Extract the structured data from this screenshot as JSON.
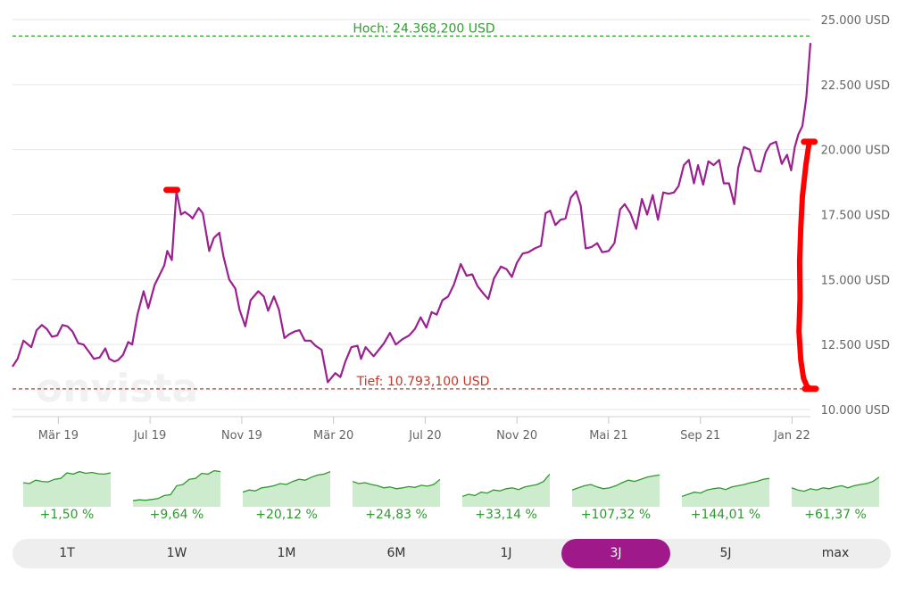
{
  "chart_data": {
    "type": "line",
    "title": "",
    "xlabel": "",
    "ylabel": "",
    "ylim": [
      10000,
      25000
    ],
    "grid": true,
    "watermark": "onvista",
    "line_color": "#9b2090",
    "y_ticks": [
      {
        "value": 10000,
        "label": "10.000 USD"
      },
      {
        "value": 12500,
        "label": "12.500 USD"
      },
      {
        "value": 15000,
        "label": "15.000 USD"
      },
      {
        "value": 17500,
        "label": "17.500 USD"
      },
      {
        "value": 20000,
        "label": "20.000 USD"
      },
      {
        "value": 22500,
        "label": "22.500 USD"
      },
      {
        "value": 25000,
        "label": "25.000 USD"
      }
    ],
    "x_ticks": [
      {
        "t": 2.0,
        "label": "Mär 19"
      },
      {
        "t": 6.0,
        "label": "Jul 19"
      },
      {
        "t": 10.0,
        "label": "Nov 19"
      },
      {
        "t": 14.0,
        "label": "Mär 20"
      },
      {
        "t": 18.0,
        "label": "Jul 20"
      },
      {
        "t": 22.0,
        "label": "Nov 20"
      },
      {
        "t": 26.0,
        "label": "Mai 21"
      },
      {
        "t": 30.0,
        "label": "Sep 21"
      },
      {
        "t": 34.0,
        "label": "Jan 22"
      }
    ],
    "high_line": {
      "value": 24368.2,
      "label": "Hoch: 24.368,200 USD",
      "color": "#2ea02e"
    },
    "low_line": {
      "value": 10793.1,
      "label": "Tief: 10.793,100 USD",
      "color": "#c0392b"
    },
    "series": [
      {
        "t": [
          0.0,
          0.22,
          0.48,
          0.82,
          1.05,
          1.28,
          1.5,
          1.72,
          1.95,
          2.18,
          2.4,
          2.62,
          2.87,
          3.1,
          3.35,
          3.55,
          3.8,
          4.05,
          4.22,
          4.45,
          4.6,
          4.82,
          5.05,
          5.22,
          5.45,
          5.72,
          5.92,
          6.2,
          6.4,
          6.62,
          6.75,
          6.95,
          7.15,
          7.35,
          7.52,
          7.75,
          7.85,
          8.12,
          8.3,
          8.58,
          8.78,
          9.02,
          9.2,
          9.45,
          9.72,
          9.9,
          10.15,
          10.38,
          10.72,
          10.96,
          11.15,
          11.4,
          11.62,
          11.86,
          12.08,
          12.3,
          12.52,
          12.75,
          13.0,
          13.22,
          13.48,
          13.75,
          14.08,
          14.3,
          14.52,
          14.78,
          15.05,
          15.2,
          15.4,
          15.75,
          15.98,
          16.2,
          16.46,
          16.72,
          17.0,
          17.3,
          17.55,
          17.8,
          18.05,
          18.28,
          18.5,
          18.75,
          19.0,
          19.25,
          19.55,
          19.8,
          20.05,
          20.28,
          20.55,
          20.75,
          21.0,
          21.3,
          21.55,
          21.78,
          22.0,
          22.25,
          22.5,
          22.78,
          23.05,
          23.25,
          23.45,
          23.68,
          23.9,
          24.12,
          24.35,
          24.58,
          24.78,
          25.0,
          25.25,
          25.5,
          25.72,
          26.0,
          26.25,
          26.5,
          26.7,
          26.95,
          27.2,
          27.45,
          27.68,
          27.92,
          28.15,
          28.38,
          28.62,
          28.85,
          29.05,
          29.28,
          29.5,
          29.72,
          29.9,
          30.12,
          30.35,
          30.58,
          30.82,
          31.02,
          31.25,
          31.48,
          31.65,
          31.9,
          32.15,
          32.4,
          32.62,
          32.85,
          33.05,
          33.3,
          33.55,
          33.78,
          33.96,
          34.12,
          34.28,
          34.45,
          34.62,
          34.8
        ],
        "values": [
          11650,
          11950,
          12650,
          12400,
          13050,
          13250,
          13100,
          12800,
          12850,
          13250,
          13200,
          13000,
          12550,
          12500,
          12200,
          11950,
          12000,
          12350,
          11950,
          11850,
          11900,
          12100,
          12600,
          12500,
          13650,
          14550,
          13900,
          14800,
          15150,
          15550,
          16100,
          15750,
          18400,
          17500,
          17600,
          17450,
          17350,
          17750,
          17550,
          16100,
          16600,
          16800,
          15900,
          15000,
          14650,
          13850,
          13200,
          14200,
          14550,
          14350,
          13800,
          14350,
          13850,
          12750,
          12900,
          13000,
          13050,
          12650,
          12650,
          12450,
          12300,
          11050,
          11400,
          11250,
          11850,
          12400,
          12450,
          11950,
          12400,
          12050,
          12300,
          12550,
          12950,
          12500,
          12700,
          12850,
          13100,
          13550,
          13150,
          13750,
          13650,
          14200,
          14350,
          14800,
          15600,
          15150,
          15200,
          14750,
          14450,
          14250,
          15050,
          15500,
          15400,
          15100,
          15650,
          16000,
          16050,
          16200,
          16300,
          17550,
          17650,
          17100,
          17300,
          17350,
          18150,
          18400,
          17850,
          16200,
          16250,
          16400,
          16050,
          16100,
          16400,
          17700,
          17900,
          17550,
          16950,
          18100,
          17500,
          18250,
          17300,
          18350,
          18300,
          18350,
          18600,
          19400,
          19600,
          18700,
          19400,
          18650,
          19550,
          19400,
          19600,
          18700,
          18700,
          17900,
          19300,
          20100,
          20000,
          19200,
          19150,
          19900,
          20200,
          20300,
          19450,
          19800,
          19200,
          20100,
          20600,
          20900,
          22000,
          24100
        ]
      }
    ],
    "annotations": [
      {
        "type": "marker",
        "t": 6.95,
        "value": 18450,
        "color": "#ff0000"
      },
      {
        "type": "marker",
        "t": 34.8,
        "value": 10800,
        "color": "#ff0000"
      },
      {
        "type": "marker",
        "t": 34.75,
        "value": 20300,
        "color": "#ff0000"
      },
      {
        "type": "freehand",
        "color": "#ff0000",
        "t": [
          34.75,
          34.6,
          34.45,
          34.38,
          34.33,
          34.35,
          34.3,
          34.38,
          34.5,
          34.65,
          34.8
        ],
        "values": [
          20300,
          19400,
          18200,
          17000,
          15700,
          14300,
          13000,
          11900,
          11200,
          10900,
          10800
        ]
      }
    ]
  },
  "performance_tiles": [
    {
      "change": "+1,50 %",
      "points": [
        52,
        50,
        58,
        55,
        54,
        60,
        62,
        75,
        72,
        78,
        74,
        76,
        73,
        72,
        75
      ]
    },
    {
      "change": "+9,64 %",
      "points": [
        10,
        12,
        11,
        13,
        15,
        22,
        24,
        45,
        48,
        60,
        62,
        74,
        72,
        80,
        78
      ]
    },
    {
      "change": "+20,12 %",
      "points": [
        30,
        35,
        33,
        40,
        42,
        45,
        50,
        48,
        55,
        60,
        58,
        65,
        70,
        72,
        78
      ]
    },
    {
      "change": "+24,83 %",
      "points": [
        55,
        50,
        52,
        48,
        45,
        40,
        42,
        38,
        40,
        43,
        41,
        46,
        44,
        48,
        60
      ]
    },
    {
      "change": "+33,14 %",
      "points": [
        20,
        25,
        22,
        30,
        28,
        35,
        33,
        38,
        40,
        36,
        42,
        45,
        48,
        55,
        72
      ]
    },
    {
      "change": "+107,32 %",
      "points": [
        35,
        40,
        45,
        48,
        42,
        38,
        40,
        45,
        52,
        58,
        55,
        60,
        65,
        68,
        70
      ]
    },
    {
      "change": "+144,01 %",
      "points": [
        20,
        25,
        30,
        28,
        35,
        38,
        40,
        36,
        42,
        45,
        48,
        52,
        55,
        60,
        62
      ]
    },
    {
      "change": "+61,37 %",
      "points": [
        40,
        35,
        32,
        38,
        35,
        40,
        38,
        42,
        45,
        40,
        45,
        48,
        50,
        55,
        65
      ]
    }
  ],
  "range_buttons": [
    {
      "label": "1T",
      "active": false
    },
    {
      "label": "1W",
      "active": false
    },
    {
      "label": "1M",
      "active": false
    },
    {
      "label": "6M",
      "active": false
    },
    {
      "label": "1J",
      "active": false
    },
    {
      "label": "3J",
      "active": true
    },
    {
      "label": "5J",
      "active": false
    },
    {
      "label": "max",
      "active": false
    }
  ],
  "colors": {
    "accent": "#a0198a",
    "positive": "#2e9a2e",
    "tile_fill": "#cdeccd",
    "grid": "#e6e6e6"
  }
}
